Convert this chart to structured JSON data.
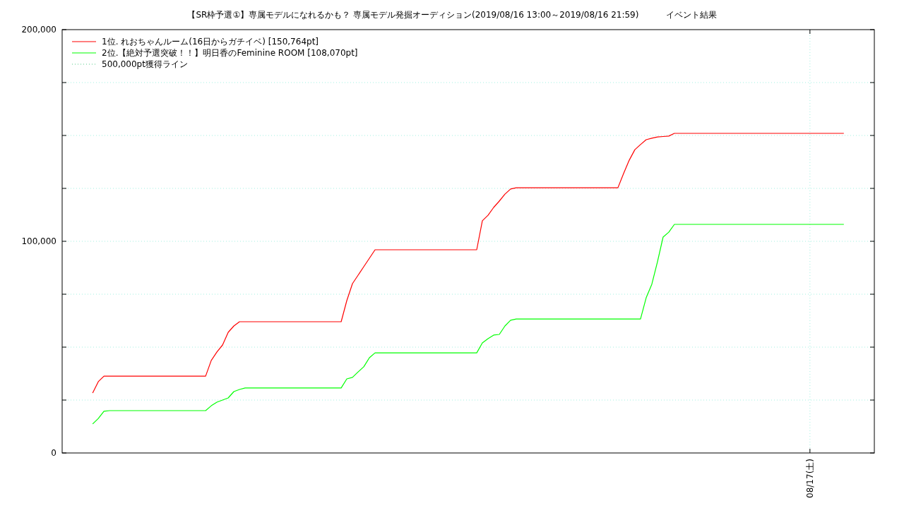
{
  "chart_data": {
    "type": "line",
    "title": "【SR枠予選①】専属モデルになれるかも？ 専属モデル発掘オーディション(2019/08/16 13:00～2019/08/16 21:59)          イベント結果",
    "categories": [
      null,
      null,
      null,
      null,
      null,
      null,
      null,
      null,
      null,
      null,
      null,
      null,
      null,
      null,
      null,
      null,
      null,
      null,
      null,
      null,
      null,
      null,
      null,
      null,
      null,
      null,
      null,
      null,
      null,
      null,
      null,
      null,
      null,
      null,
      null,
      null,
      null,
      null,
      null,
      null,
      null,
      null,
      null,
      null,
      null,
      null,
      null,
      null,
      null,
      null,
      null,
      null,
      null,
      null,
      null,
      null,
      null,
      null,
      null,
      null,
      null,
      null,
      null,
      null,
      null,
      null,
      null,
      null,
      null,
      null,
      null,
      null,
      null,
      null,
      null,
      null,
      null,
      null,
      null,
      null,
      null,
      null,
      null,
      null,
      null,
      null,
      null,
      null,
      null,
      null,
      null,
      null,
      null,
      null,
      null,
      null,
      null,
      null,
      null,
      null,
      null,
      null,
      null,
      null,
      null,
      null,
      null,
      null,
      null,
      null,
      null,
      null,
      null,
      null,
      null,
      null,
      null,
      null,
      null,
      null,
      null,
      null,
      null,
      null,
      null,
      null,
      null,
      "08/17(土)",
      null,
      null,
      null,
      null,
      null,
      null
    ],
    "ylim": [
      0,
      200000
    ],
    "yticks": [
      {
        "value": 0,
        "label": "0"
      },
      {
        "value": 25000,
        "label": null
      },
      {
        "value": 50000,
        "label": null
      },
      {
        "value": 75000,
        "label": null
      },
      {
        "value": 100000,
        "label": "100,000"
      },
      {
        "value": 125000,
        "label": null
      },
      {
        "value": 150000,
        "label": null
      },
      {
        "value": 175000,
        "label": null
      },
      {
        "value": 200000,
        "label": "200,000"
      }
    ],
    "grid": true,
    "legend": "top left",
    "line_style": "solid",
    "series": [
      {
        "name": "1位. れおちゃんルーム(16日からガチイベ) [150,764pt]",
        "color": "#ff0000",
        "values": [
          28300,
          33700,
          36300,
          36300,
          36300,
          36300,
          36300,
          36300,
          36300,
          36300,
          36300,
          36300,
          36300,
          36300,
          36300,
          36300,
          36300,
          36300,
          36300,
          36300,
          36300,
          43700,
          47700,
          51000,
          57000,
          60000,
          62000,
          62000,
          62000,
          62000,
          62000,
          62000,
          62000,
          62000,
          62000,
          62000,
          62000,
          62000,
          62000,
          62000,
          62000,
          62000,
          62000,
          62000,
          62000,
          72000,
          80000,
          84000,
          88000,
          92000,
          96000,
          96000,
          96000,
          96000,
          96000,
          96000,
          96000,
          96000,
          96000,
          96000,
          96000,
          96000,
          96000,
          96000,
          96000,
          96000,
          96000,
          96000,
          96000,
          109700,
          112300,
          116000,
          119000,
          122300,
          124700,
          125300,
          125300,
          125300,
          125300,
          125300,
          125300,
          125300,
          125300,
          125300,
          125300,
          125300,
          125300,
          125300,
          125300,
          125300,
          125300,
          125300,
          125300,
          125300,
          132000,
          138300,
          143300,
          145700,
          148000,
          148700,
          149300,
          149500,
          149700,
          151000,
          151000,
          151000,
          151000,
          151000,
          151000,
          151000,
          151000,
          151000,
          151000,
          151000,
          151000,
          151000,
          151000,
          151000,
          151000,
          151000,
          151000,
          151000,
          151000,
          151000,
          151000,
          151000,
          151000,
          151000,
          151000,
          151000,
          151000,
          151000,
          151000,
          151000
        ]
      },
      {
        "name": "2位.【絶対予選突破！！】明日香のFeminine ROOM [108,070pt]",
        "color": "#00ff00",
        "values": [
          13700,
          16300,
          19700,
          20000,
          20000,
          20000,
          20000,
          20000,
          20000,
          20000,
          20000,
          20000,
          20000,
          20000,
          20000,
          20000,
          20000,
          20000,
          20000,
          20000,
          20000,
          22300,
          24000,
          25000,
          26000,
          29000,
          30000,
          30700,
          30700,
          30700,
          30700,
          30700,
          30700,
          30700,
          30700,
          30700,
          30700,
          30700,
          30700,
          30700,
          30700,
          30700,
          30700,
          30700,
          30700,
          35000,
          35700,
          38300,
          40700,
          45000,
          47300,
          47300,
          47300,
          47300,
          47300,
          47300,
          47300,
          47300,
          47300,
          47300,
          47300,
          47300,
          47300,
          47300,
          47300,
          47300,
          47300,
          47300,
          47300,
          52000,
          54000,
          55700,
          56000,
          60000,
          62700,
          63300,
          63300,
          63300,
          63300,
          63300,
          63300,
          63300,
          63300,
          63300,
          63300,
          63300,
          63300,
          63300,
          63300,
          63300,
          63300,
          63300,
          63300,
          63300,
          63300,
          63300,
          63300,
          63300,
          73300,
          79700,
          90300,
          102000,
          104300,
          108000,
          108000,
          108000,
          108000,
          108000,
          108000,
          108000,
          108000,
          108000,
          108000,
          108000,
          108000,
          108000,
          108000,
          108000,
          108000,
          108000,
          108000,
          108000,
          108000,
          108000,
          108000,
          108000,
          108000,
          108000,
          108000,
          108000,
          108000,
          108000,
          108000,
          108000
        ]
      },
      {
        "name": "500,000pt獲得ライン",
        "color": "#55cc88",
        "line_style": "dotted",
        "values": [
          null,
          null,
          null,
          null,
          null,
          null,
          null,
          null,
          null,
          null,
          null,
          null,
          null,
          null,
          null,
          null,
          null,
          null,
          null,
          null,
          null,
          null,
          null,
          null,
          null,
          null,
          null,
          null,
          null,
          null,
          null,
          null,
          null,
          null,
          null,
          null,
          null,
          null,
          null,
          null,
          null,
          null,
          null,
          null,
          null,
          null,
          null,
          null,
          null,
          null,
          null,
          null,
          null,
          null,
          null,
          null,
          null,
          null,
          null,
          null,
          null,
          null,
          null,
          null,
          null,
          null,
          null,
          null,
          null,
          null,
          null,
          null,
          null,
          null,
          null,
          null,
          null,
          null,
          null,
          null,
          null,
          null,
          null,
          null,
          null,
          null,
          null,
          null,
          null,
          null,
          null,
          null,
          null,
          null,
          null,
          null,
          null,
          null,
          null,
          null,
          null,
          null,
          null,
          null,
          null,
          null,
          null,
          null,
          null,
          null,
          null,
          null,
          null,
          null,
          null,
          null,
          null,
          null,
          null,
          null,
          null,
          null,
          null,
          null,
          null,
          null,
          null,
          null,
          null,
          null,
          null,
          null,
          null,
          null
        ]
      }
    ]
  }
}
